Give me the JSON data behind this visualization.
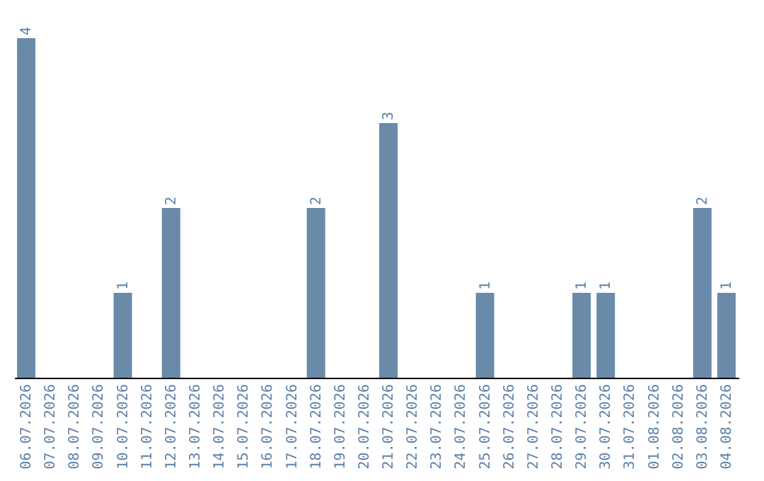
{
  "chart_data": {
    "type": "bar",
    "categories": [
      "06.07.2026",
      "07.07.2026",
      "08.07.2026",
      "09.07.2026",
      "10.07.2026",
      "11.07.2026",
      "12.07.2026",
      "13.07.2026",
      "14.07.2026",
      "15.07.2026",
      "16.07.2026",
      "17.07.2026",
      "18.07.2026",
      "19.07.2026",
      "20.07.2026",
      "21.07.2026",
      "22.07.2026",
      "23.07.2026",
      "24.07.2026",
      "25.07.2026",
      "26.07.2026",
      "27.07.2026",
      "28.07.2026",
      "29.07.2026",
      "30.07.2026",
      "31.07.2026",
      "01.08.2026",
      "02.08.2026",
      "03.08.2026",
      "04.08.2026"
    ],
    "values": [
      4,
      0,
      0,
      0,
      1,
      0,
      2,
      0,
      0,
      0,
      0,
      0,
      2,
      0,
      0,
      3,
      0,
      0,
      0,
      1,
      0,
      0,
      0,
      1,
      1,
      0,
      0,
      0,
      2,
      1
    ],
    "value_labels": [
      "4",
      null,
      null,
      null,
      "1",
      null,
      "2",
      null,
      null,
      null,
      null,
      null,
      "2",
      null,
      null,
      "3",
      null,
      null,
      null,
      "1",
      null,
      null,
      null,
      "1",
      "1",
      null,
      null,
      null,
      "2",
      "1"
    ],
    "color": "#6a8aaa",
    "ylim": [
      0,
      4
    ],
    "tick_labels": "x",
    "grid": false
  }
}
